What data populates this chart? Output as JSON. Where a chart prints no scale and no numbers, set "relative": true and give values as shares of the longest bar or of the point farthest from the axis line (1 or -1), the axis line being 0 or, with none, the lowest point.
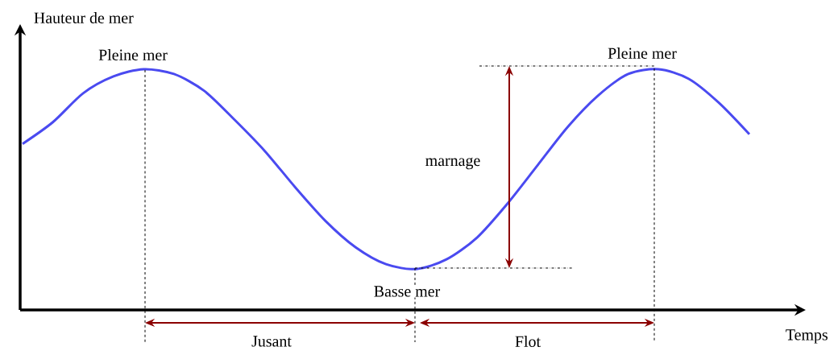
{
  "chart_data": {
    "type": "line",
    "relative": true,
    "xlabel": "Temps",
    "ylabel": "Hauteur de mer",
    "categories": [
      null,
      null,
      null,
      null,
      null,
      null,
      null,
      null,
      null,
      null,
      null,
      null,
      null,
      null,
      null,
      null,
      null,
      null,
      null,
      null,
      null,
      null,
      null,
      null,
      null
    ],
    "series": [
      {
        "color": "#4a4af0",
        "values": [
          0.69,
          0.78,
          0.9,
          0.97,
          1.0,
          0.98,
          0.91,
          0.79,
          0.66,
          0.51,
          0.37,
          0.26,
          0.19,
          0.17,
          0.21,
          0.3,
          0.44,
          0.6,
          0.76,
          0.89,
          0.98,
          1.0,
          0.96,
          0.86,
          0.73
        ]
      }
    ],
    "annotations": [
      "Pleine mer",
      "Pleine mer",
      "marnage",
      "Basse mer",
      "Jusant",
      "Flot"
    ],
    "marker": "none",
    "line_style": "solid"
  }
}
